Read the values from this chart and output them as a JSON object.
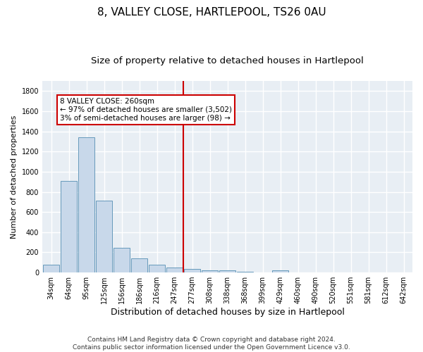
{
  "title1": "8, VALLEY CLOSE, HARTLEPOOL, TS26 0AU",
  "title2": "Size of property relative to detached houses in Hartlepool",
  "xlabel": "Distribution of detached houses by size in Hartlepool",
  "ylabel": "Number of detached properties",
  "bar_color": "#c8d8ea",
  "bar_edge_color": "#6699bb",
  "categories": [
    "34sqm",
    "64sqm",
    "95sqm",
    "125sqm",
    "156sqm",
    "186sqm",
    "216sqm",
    "247sqm",
    "277sqm",
    "308sqm",
    "338sqm",
    "368sqm",
    "399sqm",
    "429sqm",
    "460sqm",
    "490sqm",
    "520sqm",
    "551sqm",
    "581sqm",
    "612sqm",
    "642sqm"
  ],
  "values": [
    80,
    905,
    1340,
    710,
    248,
    140,
    80,
    50,
    35,
    25,
    20,
    10,
    0,
    20,
    0,
    0,
    0,
    0,
    0,
    0,
    0
  ],
  "vline_color": "#cc0000",
  "vline_pos": 7.5,
  "annotation_text": "8 VALLEY CLOSE: 260sqm\n← 97% of detached houses are smaller (3,502)\n3% of semi-detached houses are larger (98) →",
  "annotation_box_color": "#ffffff",
  "annotation_box_edge_color": "#cc0000",
  "ylim": [
    0,
    1900
  ],
  "yticks": [
    0,
    200,
    400,
    600,
    800,
    1000,
    1200,
    1400,
    1600,
    1800
  ],
  "footer": "Contains HM Land Registry data © Crown copyright and database right 2024.\nContains public sector information licensed under the Open Government Licence v3.0.",
  "background_color": "#ffffff",
  "plot_bg_color": "#e8eef4",
  "grid_color": "#ffffff",
  "title1_fontsize": 11,
  "title2_fontsize": 9.5,
  "xlabel_fontsize": 9,
  "ylabel_fontsize": 8,
  "tick_fontsize": 7,
  "footer_fontsize": 6.5
}
